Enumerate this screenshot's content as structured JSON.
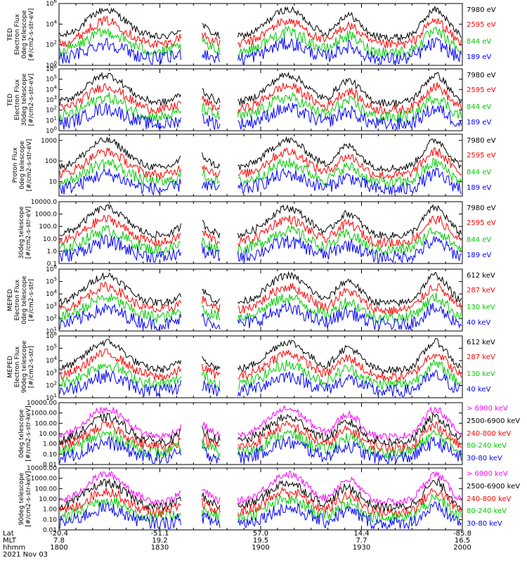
{
  "chart_data": {
    "type": "line",
    "x_axis": {
      "name_rows": [
        "Lat",
        "MLT",
        "hhmm"
      ],
      "ticks": [
        {
          "hhmm": "1800",
          "lat": "-20.4",
          "mlt": "7.8"
        },
        {
          "hhmm": "1830",
          "lat": "-51.1",
          "mlt": "19.2"
        },
        {
          "hhmm": "1900",
          "lat": "57.0",
          "mlt": "19.5"
        },
        {
          "hhmm": "1930",
          "lat": "14.4",
          "mlt": "7.7"
        },
        {
          "hhmm": "2000",
          "lat": "-85.8",
          "mlt": "16.5"
        }
      ],
      "date": "2021 Nov 03",
      "range_minutes": [
        0,
        120
      ]
    },
    "panels": [
      {
        "id": "ted-electron-0deg",
        "ylabel_lines": [
          "TED",
          "Electron Flux",
          "0deg telescope",
          "[#/cm2-s-str-eV]"
        ],
        "yscale": "log",
        "tick_labels": [
          "10^0",
          "10^2",
          "10^4",
          "10^6"
        ],
        "tick_exps": [
          0,
          2,
          4,
          6
        ],
        "ylim_exp": [
          0,
          6
        ],
        "series": [
          {
            "name": "7980 eV",
            "color": "#000000"
          },
          {
            "name": "2595 eV",
            "color": "#ff0000"
          },
          {
            "name": "844 eV",
            "color": "#00cc00"
          },
          {
            "name": "189 eV",
            "color": "#0000ff"
          }
        ]
      },
      {
        "id": "ted-electron-30deg",
        "ylabel_lines": [
          "TED",
          "Electron Flux",
          "30deg telescope",
          "[#/cm2-s-str-eV]"
        ],
        "yscale": "log",
        "tick_labels": [
          "10^0",
          "10^1",
          "10^2",
          "10^3",
          "10^4",
          "10^5",
          "10^6"
        ],
        "tick_exps": [
          0,
          1,
          2,
          3,
          4,
          5,
          6
        ],
        "ylim_exp": [
          0,
          6
        ],
        "series": [
          {
            "name": "7980 eV",
            "color": "#000000"
          },
          {
            "name": "2595 eV",
            "color": "#ff0000"
          },
          {
            "name": "844 eV",
            "color": "#00cc00"
          },
          {
            "name": "189 eV",
            "color": "#0000ff"
          }
        ]
      },
      {
        "id": "ted-proton-0deg",
        "ylabel_lines": [
          "Proton Flux",
          "0deg telescope",
          "[#/cm2-s-str-eV]"
        ],
        "yscale": "log",
        "tick_labels": [
          "10",
          "100",
          "1000"
        ],
        "tick_exps": [
          1,
          2,
          3
        ],
        "ylim_exp": [
          0.3,
          3.3
        ],
        "series": [
          {
            "name": "7980 eV",
            "color": "#000000"
          },
          {
            "name": "2595 eV",
            "color": "#ff0000"
          },
          {
            "name": "844 eV",
            "color": "#00cc00"
          },
          {
            "name": "189 eV",
            "color": "#0000ff"
          }
        ]
      },
      {
        "id": "ted-proton-30deg",
        "ylabel_lines": [
          "30deg telescope",
          "[#/cm2-s-str-eV]"
        ],
        "yscale": "log",
        "tick_labels": [
          "0.1",
          "1.0",
          "10.0",
          "100.0",
          "1000.0",
          "10000.0"
        ],
        "tick_exps": [
          -1,
          0,
          1,
          2,
          3,
          4
        ],
        "ylim_exp": [
          -1,
          4
        ],
        "series": [
          {
            "name": "7980 eV",
            "color": "#000000"
          },
          {
            "name": "2595 eV",
            "color": "#ff0000"
          },
          {
            "name": "844 eV",
            "color": "#00cc00"
          },
          {
            "name": "189 eV",
            "color": "#0000ff"
          }
        ]
      },
      {
        "id": "meped-electron-0deg",
        "ylabel_lines": [
          "MEPED",
          "Electron Flux",
          "0deg telescope",
          "[#/cm2-s-str]"
        ],
        "yscale": "log",
        "tick_labels": [
          "10^1",
          "10^2",
          "10^3",
          "10^4",
          "10^5",
          "10^6"
        ],
        "tick_exps": [
          1,
          2,
          3,
          4,
          5,
          6
        ],
        "ylim_exp": [
          1,
          6
        ],
        "series": [
          {
            "name": "612 keV",
            "color": "#000000"
          },
          {
            "name": "287 keV",
            "color": "#ff0000"
          },
          {
            "name": "130 keV",
            "color": "#00cc00"
          },
          {
            "name": "40 keV",
            "color": "#0000ff"
          }
        ]
      },
      {
        "id": "meped-electron-90deg",
        "ylabel_lines": [
          "MEPED",
          "Electron Flux",
          "90deg telescope",
          "[#/cm2-s-str]"
        ],
        "yscale": "log",
        "tick_labels": [
          "10^1",
          "10^2",
          "10^3",
          "10^4",
          "10^5",
          "10^6"
        ],
        "tick_exps": [
          1,
          2,
          3,
          4,
          5,
          6
        ],
        "ylim_exp": [
          1,
          6
        ],
        "series": [
          {
            "name": "612 keV",
            "color": "#000000"
          },
          {
            "name": "287 keV",
            "color": "#ff0000"
          },
          {
            "name": "130 keV",
            "color": "#00cc00"
          },
          {
            "name": "40 keV",
            "color": "#0000ff"
          }
        ]
      },
      {
        "id": "meped-proton-0deg",
        "ylabel_lines": [
          "0deg telescope",
          "[#/cm2-s-str-keV]"
        ],
        "yscale": "log",
        "tick_labels": [
          "0.01",
          "0.10",
          "1.00",
          "10.00",
          "100.00",
          "1000.00",
          "10000.00"
        ],
        "tick_exps": [
          -2,
          -1,
          0,
          1,
          2,
          3,
          4
        ],
        "ylim_exp": [
          -2,
          4
        ],
        "series": [
          {
            "name": "> 6900 keV",
            "color": "#ff00ff"
          },
          {
            "name": "2500-6900 keV",
            "color": "#000000"
          },
          {
            "name": "240-800 keV",
            "color": "#ff0000"
          },
          {
            "name": "80-240 keV",
            "color": "#00cc00"
          },
          {
            "name": "30-80 keV",
            "color": "#0000ff"
          }
        ]
      },
      {
        "id": "meped-proton-90deg",
        "ylabel_lines": [
          "90deg telescope",
          "[#/cm2-s-str-keV]"
        ],
        "yscale": "log",
        "tick_labels": [
          "0.01",
          "0.10",
          "1.00",
          "10.00",
          "100.00",
          "1000.00",
          "10000.00"
        ],
        "tick_exps": [
          -2,
          -1,
          0,
          1,
          2,
          3,
          4
        ],
        "ylim_exp": [
          -2,
          4
        ],
        "series": [
          {
            "name": "> 6900 keV",
            "color": "#ff00ff"
          },
          {
            "name": "2500-6900 keV",
            "color": "#000000"
          },
          {
            "name": "240-800 keV",
            "color": "#ff0000"
          },
          {
            "name": "80-240 keV",
            "color": "#00cc00"
          },
          {
            "name": "30-80 keV",
            "color": "#0000ff"
          }
        ]
      }
    ]
  }
}
